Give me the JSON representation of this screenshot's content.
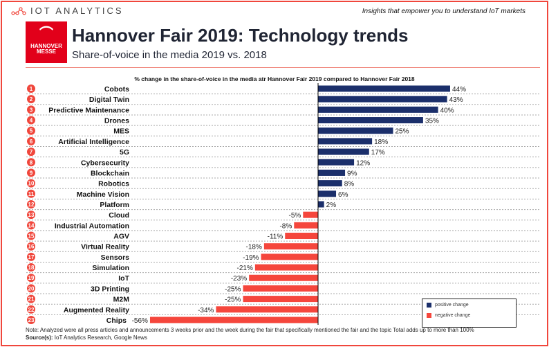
{
  "header": {
    "brand": "IOT ANALYTICS",
    "tagline": "Insights that empower you to understand IoT markets",
    "badge_logo": "HANNOVER MESSE",
    "title": "Hannover Fair 2019: Technology trends",
    "subtitle": "Share-of-voice in the media 2019 vs. 2018"
  },
  "chart_data": {
    "type": "bar",
    "orientation": "horizontal",
    "title": "% change in the share-of-voice in the media atr Hannover Fair 2019 compared to Hannover Fair 2018",
    "categories": [
      "Cobots",
      "Digital Twin",
      "Predictive Maintenance",
      "Drones",
      "MES",
      "Artificial Intelligence",
      "5G",
      "Cybersecurity",
      "Blockchain",
      "Robotics",
      "Machine Vision",
      "Platform",
      "Cloud",
      "Industrial Automation",
      "AGV",
      "Virtual Reality",
      "Sensors",
      "Simulation",
      "IoT",
      "3D Printing",
      "M2M",
      "Augmented Reality",
      "Chips"
    ],
    "values": [
      44,
      43,
      40,
      35,
      25,
      18,
      17,
      12,
      9,
      8,
      6,
      2,
      -5,
      -8,
      -11,
      -18,
      -19,
      -21,
      -23,
      -25,
      -25,
      -34,
      -56
    ],
    "unit": "%",
    "colors": {
      "positive": "#1b2f6b",
      "negative": "#f5463c",
      "rank": "#f0473c"
    },
    "legend": [
      "positive change",
      "negative change"
    ],
    "legend_position": "bottom-right"
  },
  "footer": {
    "note": "Note: Analyzed were all press articles and announcements 3 weeks prior and the week during the fair that specifically mentioned the fair and the topic  Total adds up to more than 100%",
    "source_label": "Source(s):",
    "source": " IoT Analytics Research, Google News"
  }
}
